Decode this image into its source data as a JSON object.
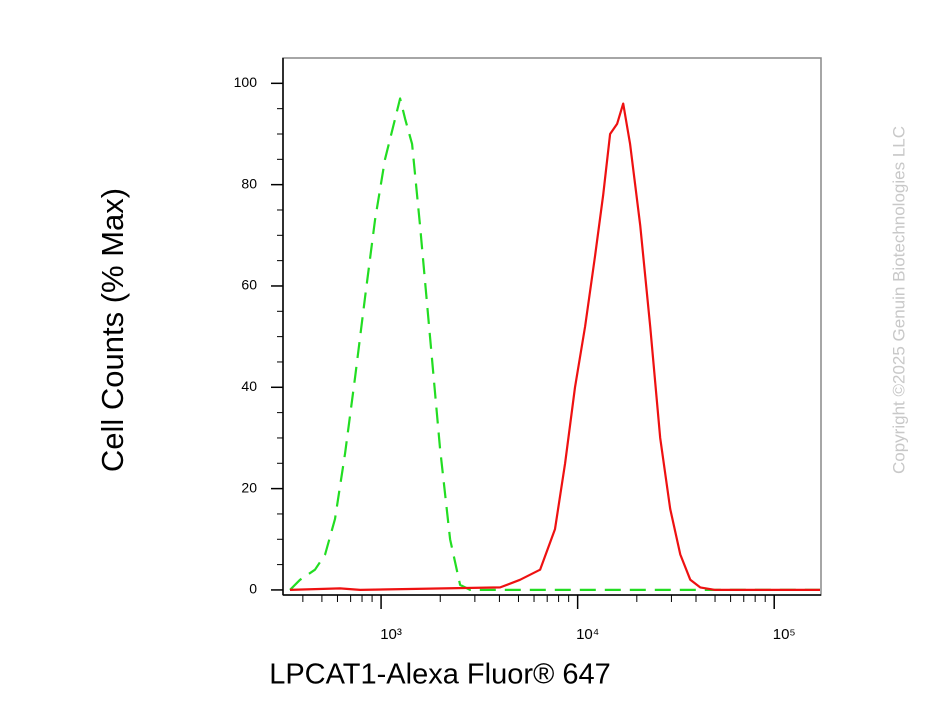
{
  "chart_data": {
    "type": "line",
    "log_x": true,
    "x_label": "LPCAT1-Alexa Fluor® 647",
    "y_label": "Cell Counts (% Max)",
    "watermark": "Copyright ©2025 Genuin Biotechnologies LLC",
    "xlim": [
      317,
      173000
    ],
    "ylim": [
      -1,
      105
    ],
    "xticks": [
      {
        "value": 1000,
        "label": "10³"
      },
      {
        "value": 10000,
        "label": "10⁴"
      },
      {
        "value": 100000,
        "label": "10⁵"
      }
    ],
    "x_minor_ticks": [
      400,
      500,
      600,
      700,
      800,
      900,
      2000,
      3000,
      4000,
      5000,
      6000,
      7000,
      8000,
      9000,
      20000,
      30000,
      40000,
      50000,
      60000,
      70000,
      80000,
      90000
    ],
    "yticks": [
      0,
      20,
      40,
      60,
      80,
      100
    ],
    "y_minor_ticks": [
      5,
      10,
      15,
      25,
      30,
      35,
      45,
      50,
      55,
      65,
      70,
      75,
      85,
      90,
      95
    ],
    "series": [
      {
        "color": "#22dd22",
        "dash": true,
        "x": [
          344,
          387,
          461,
          519,
          583,
          656,
          738,
          830,
          931,
          1047,
          1178,
          1249,
          1325,
          1438,
          1578,
          1774,
          1995,
          2244,
          2523,
          2838,
          171000
        ],
        "values": [
          0,
          2,
          4,
          7,
          14,
          27,
          42,
          58,
          73,
          85,
          93,
          97,
          93,
          88,
          72,
          50,
          28,
          10,
          1,
          0,
          0
        ]
      },
      {
        "color": "#ee1111",
        "dash": false,
        "x": [
          344,
          618,
          782,
          4036,
          5093,
          6442,
          7674,
          8630,
          9700,
          10910,
          12270,
          13490,
          14630,
          15880,
          17050,
          18490,
          20800,
          23390,
          26300,
          29580,
          33270,
          37410,
          42000,
          50100,
          171000
        ],
        "values": [
          0,
          0.3,
          0,
          0.5,
          2,
          4,
          12,
          25,
          40,
          52,
          66,
          78,
          90,
          92,
          96,
          88,
          72,
          52,
          30,
          16,
          7,
          2,
          0.5,
          0,
          0
        ]
      }
    ]
  }
}
